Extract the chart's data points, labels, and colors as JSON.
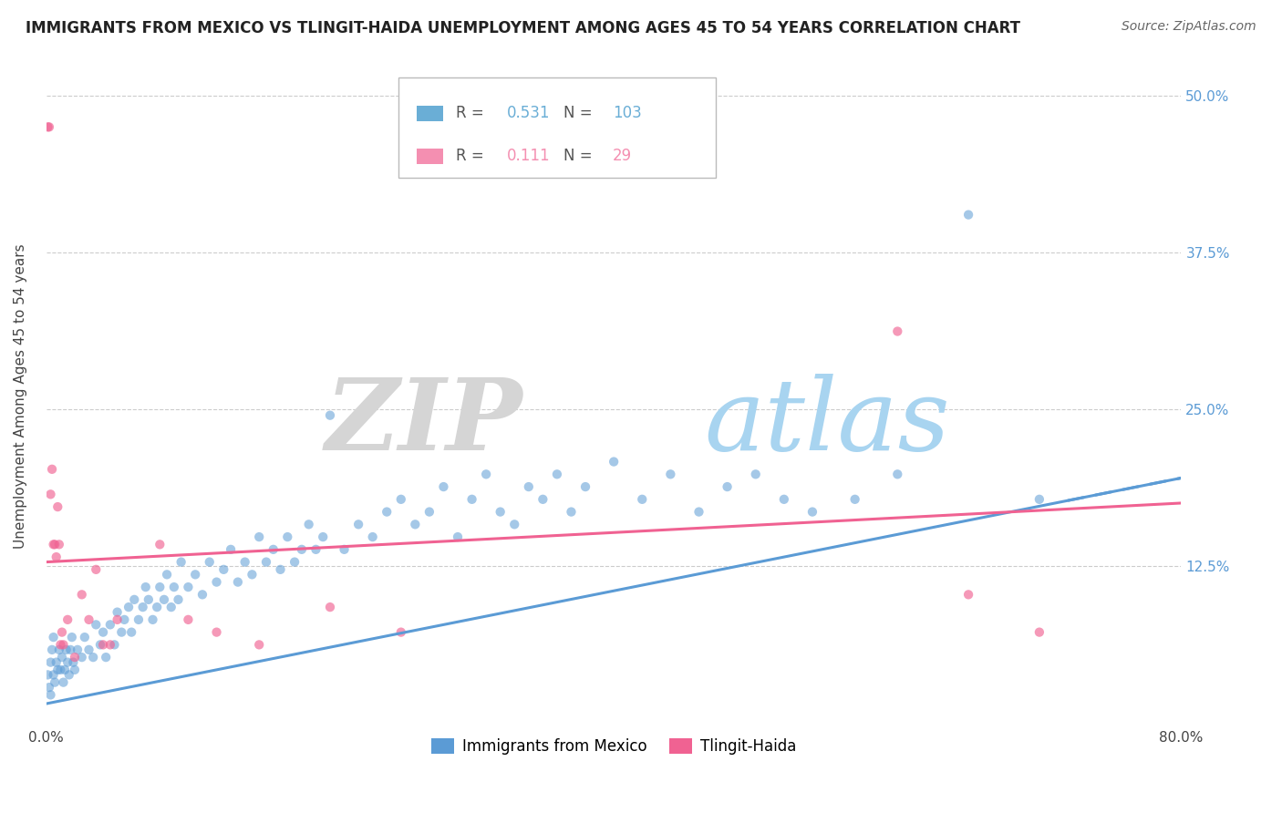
{
  "title": "IMMIGRANTS FROM MEXICO VS TLINGIT-HAIDA UNEMPLOYMENT AMONG AGES 45 TO 54 YEARS CORRELATION CHART",
  "source": "Source: ZipAtlas.com",
  "ylabel": "Unemployment Among Ages 45 to 54 years",
  "xlim": [
    0.0,
    0.8
  ],
  "ylim": [
    0.0,
    0.52
  ],
  "xticks": [
    0.0,
    0.1,
    0.2,
    0.3,
    0.4,
    0.5,
    0.6,
    0.7,
    0.8
  ],
  "xticklabels": [
    "0.0%",
    "",
    "",
    "",
    "",
    "",
    "",
    "",
    "80.0%"
  ],
  "yticks": [
    0.0,
    0.125,
    0.25,
    0.375,
    0.5
  ],
  "yticklabels": [
    "",
    "12.5%",
    "25.0%",
    "37.5%",
    "50.0%"
  ],
  "legend_entries": [
    {
      "label": "Immigrants from Mexico",
      "R": 0.531,
      "N": 103,
      "color": "#6aaed6"
    },
    {
      "label": "Tlingit-Haida",
      "R": 0.111,
      "N": 29,
      "color": "#f48fb1"
    }
  ],
  "blue_color": "#5b9bd5",
  "pink_color": "#f06292",
  "watermark_zip_color": "#d8d8d8",
  "watermark_atlas_color": "#a8d4f0",
  "background_color": "#ffffff",
  "grid_color": "#cccccc",
  "blue_scatter": [
    [
      0.001,
      0.038
    ],
    [
      0.002,
      0.028
    ],
    [
      0.003,
      0.022
    ],
    [
      0.003,
      0.048
    ],
    [
      0.004,
      0.058
    ],
    [
      0.005,
      0.038
    ],
    [
      0.005,
      0.068
    ],
    [
      0.006,
      0.032
    ],
    [
      0.007,
      0.048
    ],
    [
      0.008,
      0.042
    ],
    [
      0.009,
      0.058
    ],
    [
      0.01,
      0.042
    ],
    [
      0.011,
      0.052
    ],
    [
      0.012,
      0.032
    ],
    [
      0.013,
      0.042
    ],
    [
      0.014,
      0.058
    ],
    [
      0.015,
      0.048
    ],
    [
      0.016,
      0.038
    ],
    [
      0.017,
      0.058
    ],
    [
      0.018,
      0.068
    ],
    [
      0.019,
      0.048
    ],
    [
      0.02,
      0.042
    ],
    [
      0.022,
      0.058
    ],
    [
      0.025,
      0.052
    ],
    [
      0.027,
      0.068
    ],
    [
      0.03,
      0.058
    ],
    [
      0.033,
      0.052
    ],
    [
      0.035,
      0.078
    ],
    [
      0.038,
      0.062
    ],
    [
      0.04,
      0.072
    ],
    [
      0.042,
      0.052
    ],
    [
      0.045,
      0.078
    ],
    [
      0.048,
      0.062
    ],
    [
      0.05,
      0.088
    ],
    [
      0.053,
      0.072
    ],
    [
      0.055,
      0.082
    ],
    [
      0.058,
      0.092
    ],
    [
      0.06,
      0.072
    ],
    [
      0.062,
      0.098
    ],
    [
      0.065,
      0.082
    ],
    [
      0.068,
      0.092
    ],
    [
      0.07,
      0.108
    ],
    [
      0.072,
      0.098
    ],
    [
      0.075,
      0.082
    ],
    [
      0.078,
      0.092
    ],
    [
      0.08,
      0.108
    ],
    [
      0.083,
      0.098
    ],
    [
      0.085,
      0.118
    ],
    [
      0.088,
      0.092
    ],
    [
      0.09,
      0.108
    ],
    [
      0.093,
      0.098
    ],
    [
      0.095,
      0.128
    ],
    [
      0.1,
      0.108
    ],
    [
      0.105,
      0.118
    ],
    [
      0.11,
      0.102
    ],
    [
      0.115,
      0.128
    ],
    [
      0.12,
      0.112
    ],
    [
      0.125,
      0.122
    ],
    [
      0.13,
      0.138
    ],
    [
      0.135,
      0.112
    ],
    [
      0.14,
      0.128
    ],
    [
      0.145,
      0.118
    ],
    [
      0.15,
      0.148
    ],
    [
      0.155,
      0.128
    ],
    [
      0.16,
      0.138
    ],
    [
      0.165,
      0.122
    ],
    [
      0.17,
      0.148
    ],
    [
      0.175,
      0.128
    ],
    [
      0.18,
      0.138
    ],
    [
      0.185,
      0.158
    ],
    [
      0.19,
      0.138
    ],
    [
      0.195,
      0.148
    ],
    [
      0.2,
      0.245
    ],
    [
      0.21,
      0.138
    ],
    [
      0.22,
      0.158
    ],
    [
      0.23,
      0.148
    ],
    [
      0.24,
      0.168
    ],
    [
      0.25,
      0.178
    ],
    [
      0.26,
      0.158
    ],
    [
      0.27,
      0.168
    ],
    [
      0.28,
      0.188
    ],
    [
      0.29,
      0.148
    ],
    [
      0.3,
      0.178
    ],
    [
      0.31,
      0.198
    ],
    [
      0.32,
      0.168
    ],
    [
      0.33,
      0.158
    ],
    [
      0.34,
      0.188
    ],
    [
      0.35,
      0.178
    ],
    [
      0.36,
      0.198
    ],
    [
      0.37,
      0.168
    ],
    [
      0.38,
      0.188
    ],
    [
      0.4,
      0.208
    ],
    [
      0.42,
      0.178
    ],
    [
      0.44,
      0.198
    ],
    [
      0.46,
      0.168
    ],
    [
      0.48,
      0.188
    ],
    [
      0.5,
      0.198
    ],
    [
      0.52,
      0.178
    ],
    [
      0.54,
      0.168
    ],
    [
      0.57,
      0.178
    ],
    [
      0.6,
      0.198
    ],
    [
      0.65,
      0.405
    ],
    [
      0.7,
      0.178
    ]
  ],
  "pink_scatter": [
    [
      0.001,
      0.475
    ],
    [
      0.002,
      0.475
    ],
    [
      0.003,
      0.182
    ],
    [
      0.004,
      0.202
    ],
    [
      0.005,
      0.142
    ],
    [
      0.006,
      0.142
    ],
    [
      0.007,
      0.132
    ],
    [
      0.008,
      0.172
    ],
    [
      0.009,
      0.142
    ],
    [
      0.01,
      0.062
    ],
    [
      0.011,
      0.072
    ],
    [
      0.012,
      0.062
    ],
    [
      0.015,
      0.082
    ],
    [
      0.02,
      0.052
    ],
    [
      0.025,
      0.102
    ],
    [
      0.03,
      0.082
    ],
    [
      0.035,
      0.122
    ],
    [
      0.04,
      0.062
    ],
    [
      0.045,
      0.062
    ],
    [
      0.05,
      0.082
    ],
    [
      0.08,
      0.142
    ],
    [
      0.1,
      0.082
    ],
    [
      0.12,
      0.072
    ],
    [
      0.15,
      0.062
    ],
    [
      0.2,
      0.092
    ],
    [
      0.25,
      0.072
    ],
    [
      0.6,
      0.312
    ],
    [
      0.65,
      0.102
    ],
    [
      0.7,
      0.072
    ]
  ],
  "blue_trend": {
    "x_start": 0.0,
    "x_end": 0.8,
    "y_start": 0.015,
    "y_end": 0.195
  },
  "pink_trend": {
    "x_start": 0.0,
    "x_end": 0.8,
    "y_start": 0.128,
    "y_end": 0.175
  }
}
